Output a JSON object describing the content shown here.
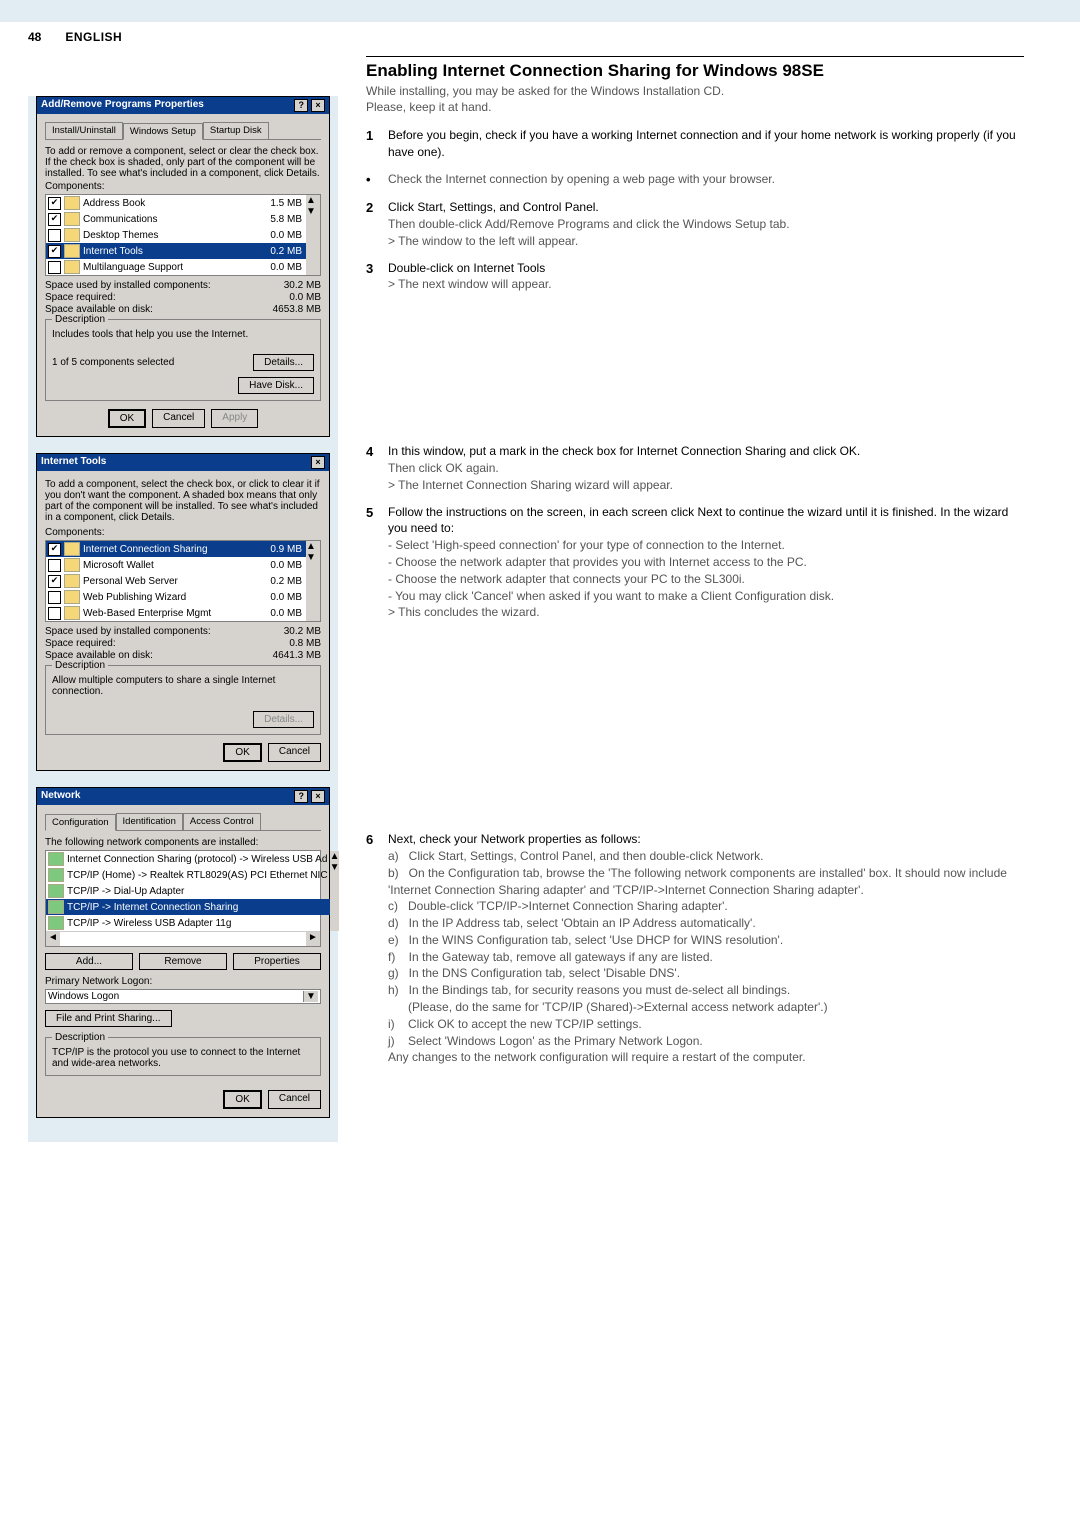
{
  "page_number": "48",
  "language": "ENGLISH",
  "heading": "Enabling Internet Connection Sharing for Windows 98SE",
  "intro1": "While installing, you may be asked for the Windows Installation CD.",
  "intro2": "Please, keep it at hand.",
  "step1_bold": "Before you begin, check if you have a working Internet connection and if your home network is working properly (if you have one).",
  "step1_bullet": "Check the Internet connection by opening a web page with your browser.",
  "step2_bold": "Click Start, Settings, and Control Panel.",
  "step2a": "Then double-click Add/Remove Programs and click the Windows Setup tab.",
  "step2b": "> The window to the left will appear.",
  "step3_bold": "Double-click on Internet Tools",
  "step3a": "> The next window will appear.",
  "step4a": "In this window, put a mark in the check box for Internet Connection Sharing and click OK.",
  "step4b": "Then click OK again.",
  "step4c": "> The Internet Connection Sharing wizard will appear.",
  "step5_bold": "Follow the instructions on the screen, in each screen click Next to continue the wizard until it is finished. In the wizard you need to:",
  "step5_a": "- Select 'High-speed connection' for your type of connection to the Internet.",
  "step5_b": "- Choose the network adapter that provides you with Internet access to the PC.",
  "step5_c": "- Choose the network adapter that connects your PC to the SL300i.",
  "step5_d": "- You may click 'Cancel' when asked if you want to make a Client Configuration disk.",
  "step5_e": "> This concludes the wizard.",
  "step6_bold": "Next, check your Network properties as follows:",
  "step6_a": "Click Start, Settings, Control Panel, and then double-click Network.",
  "step6_b": "On the Configuration tab, browse the 'The following network components are installed' box. It should now include 'Internet Connection Sharing adapter' and 'TCP/IP->Internet Connection Sharing adapter'.",
  "step6_c": "Double-click 'TCP/IP->Internet Connection Sharing adapter'.",
  "step6_d": "In the IP Address tab, select 'Obtain an IP Address automatically'.",
  "step6_e": "In the WINS Configuration tab, select 'Use DHCP for WINS resolution'.",
  "step6_f": "In the Gateway tab, remove all gateways if any are listed.",
  "step6_g": "In the DNS Configuration tab, select 'Disable DNS'.",
  "step6_h": "In the Bindings tab, for security reasons you must de-select all bindings.",
  "step6_h2": "(Please, do the same for 'TCP/IP (Shared)->External access network adapter'.)",
  "step6_i": "Click OK to accept the new TCP/IP settings.",
  "step6_j": "Select 'Windows Logon' as the Primary Network Logon.",
  "step6_end": "Any changes to the network configuration will require a restart of the computer.",
  "dlg1": {
    "title": "Add/Remove Programs Properties",
    "tabs": [
      "Install/Uninstall",
      "Windows Setup",
      "Startup Disk"
    ],
    "desc": "To add or remove a component, select or clear the check box. If the check box is shaded, only part of the component will be installed. To see what's included in a component, click Details.",
    "compLabel": "Components:",
    "rows": [
      {
        "chk": "✔",
        "name": "Address Book",
        "size": "1.5 MB"
      },
      {
        "chk": "✔",
        "name": "Communications",
        "size": "5.8 MB"
      },
      {
        "chk": "",
        "name": "Desktop Themes",
        "size": "0.0 MB"
      },
      {
        "chk": "✔",
        "name": "Internet Tools",
        "size": "0.2 MB",
        "sel": true
      },
      {
        "chk": "",
        "name": "Multilanguage Support",
        "size": "0.0 MB"
      }
    ],
    "used_l": "Space used by installed components:",
    "used_v": "30.2 MB",
    "req_l": "Space required:",
    "req_v": "0.0 MB",
    "avail_l": "Space available on disk:",
    "avail_v": "4653.8 MB",
    "descTitle": "Description",
    "descTxt": "Includes tools that help you use the Internet.",
    "selTxt": "1 of 5 components selected",
    "btn_details": "Details...",
    "btn_disk": "Have Disk...",
    "ok": "OK",
    "cancel": "Cancel",
    "apply": "Apply"
  },
  "dlg2": {
    "title": "Internet Tools",
    "desc": "To add a component, select the check box, or click to clear it if you don't want the component. A shaded box means that only part of the component will be installed. To see what's included in a component, click Details.",
    "compLabel": "Components:",
    "rows": [
      {
        "chk": "✔",
        "name": "Internet Connection Sharing",
        "size": "0.9 MB",
        "sel": true
      },
      {
        "chk": "",
        "name": "Microsoft Wallet",
        "size": "0.0 MB"
      },
      {
        "chk": "✔",
        "name": "Personal Web Server",
        "size": "0.2 MB"
      },
      {
        "chk": "",
        "name": "Web Publishing Wizard",
        "size": "0.0 MB"
      },
      {
        "chk": "",
        "name": "Web-Based Enterprise Mgmt",
        "size": "0.0 MB"
      }
    ],
    "used_l": "Space used by installed components:",
    "used_v": "30.2 MB",
    "req_l": "Space required:",
    "req_v": "0.8 MB",
    "avail_l": "Space available on disk:",
    "avail_v": "4641.3 MB",
    "descTitle": "Description",
    "descTxt": "Allow multiple computers to share a single Internet connection.",
    "btn_details": "Details...",
    "ok": "OK",
    "cancel": "Cancel"
  },
  "dlg3": {
    "title": "Network",
    "tabs": [
      "Configuration",
      "Identification",
      "Access Control"
    ],
    "lbl": "The following network components are installed:",
    "rows": [
      "Internet Connection Sharing (protocol) -> Wireless USB Ad",
      "TCP/IP (Home) -> Realtek RTL8029(AS) PCI Ethernet NIC",
      "TCP/IP -> Dial-Up Adapter",
      "TCP/IP -> Internet Connection Sharing",
      "TCP/IP -> Wireless USB Adapter 11g"
    ],
    "selIdx": 3,
    "btn_add": "Add...",
    "btn_rem": "Remove",
    "btn_prop": "Properties",
    "primLbl": "Primary Network Logon:",
    "primVal": "Windows Logon",
    "btn_share": "File and Print Sharing...",
    "descTitle": "Description",
    "descTxt": "TCP/IP is the protocol you use to connect to the Internet and wide-area networks.",
    "ok": "OK",
    "cancel": "Cancel"
  }
}
